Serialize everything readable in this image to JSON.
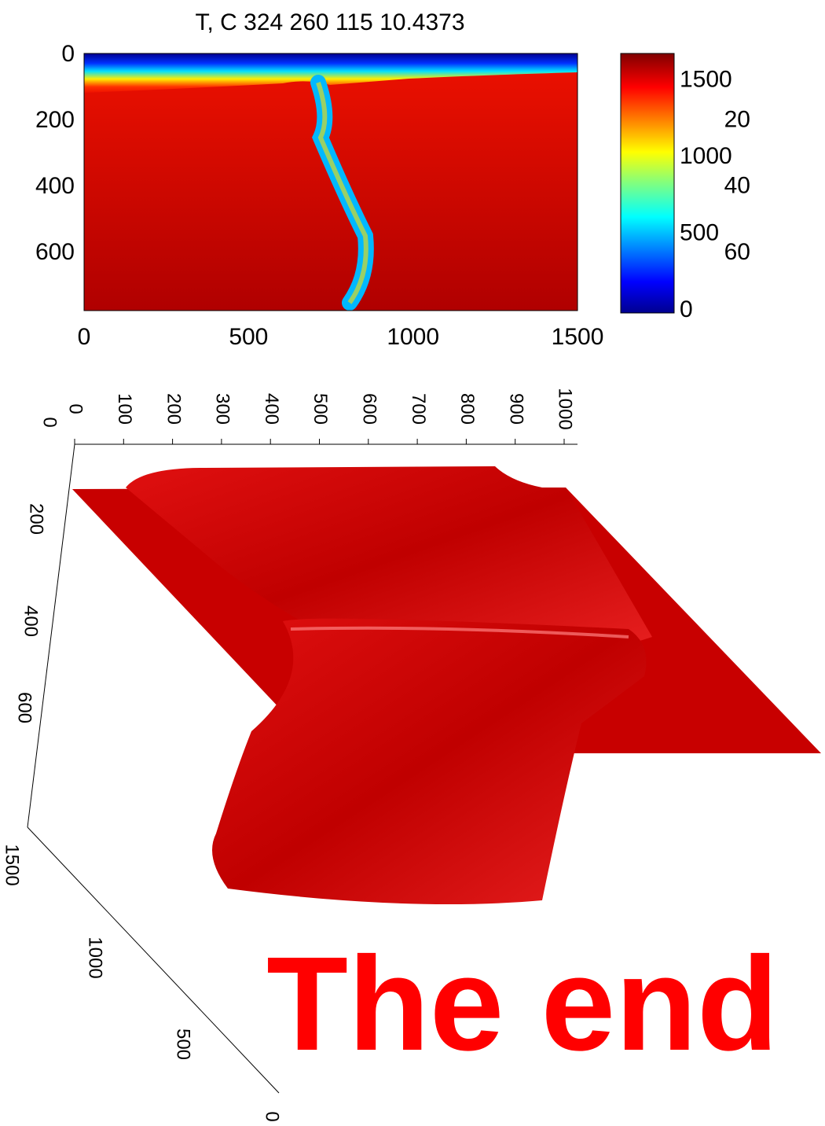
{
  "title": "T, C 324 260 115 10.4373",
  "heatmap": {
    "xticks": [
      0,
      500,
      1000,
      1500
    ],
    "yticks": [
      0,
      200,
      400,
      600
    ]
  },
  "colorbar": {
    "ticks": [
      1500,
      1000,
      500,
      0
    ],
    "secondary_ticks": [
      20,
      40,
      60
    ]
  },
  "surface": {
    "top_axis_ticks": [
      0,
      100,
      200,
      300,
      400,
      500,
      600,
      700,
      800,
      900,
      1000
    ],
    "side_axis_ticks": [
      0,
      200,
      400,
      600,
      1500
    ],
    "depth_axis_ticks": [
      1000,
      500,
      0
    ]
  },
  "caption": "The end"
}
